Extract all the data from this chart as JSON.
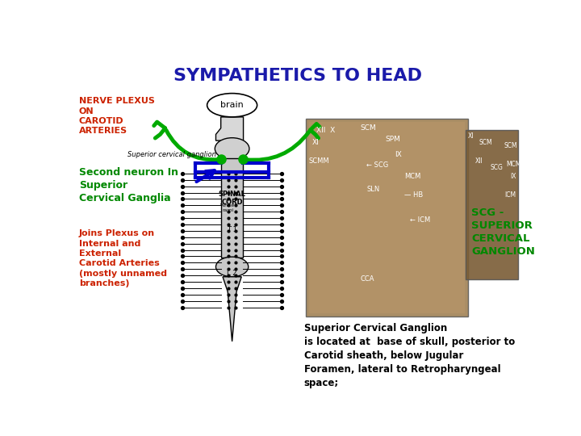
{
  "title": "SYMPATHETICS TO HEAD",
  "title_color": "#1a1aaa",
  "title_fontsize": 16,
  "bg_color": "#ffffff",
  "label_nerve_plexus": "NERVE PLEXUS\nON\nCAROTID\nARTERIES",
  "label_nerve_plexus_color": "#cc2200",
  "label_second_neuron": "Second neuron In\nSuperior\nCervical Ganglia",
  "label_second_neuron_color": "#008800",
  "label_joins": "Joins Plexus on\nInternal and\nExternal\nCarotid Arteries\n(mostly unnamed\nbranches)",
  "label_joins_color": "#cc2200",
  "label_scg": "SCG -\nSUPERIOR\nCERVICAL\nGANGLION",
  "label_scg_color": "#008800",
  "label_description": "Superior Cervical Ganglion\nis located at  base of skull, posterior to\nCarotid sheath, below Jugular\nForamen, lateral to Retropharyngeal\nspace;",
  "label_description_color": "#000000"
}
